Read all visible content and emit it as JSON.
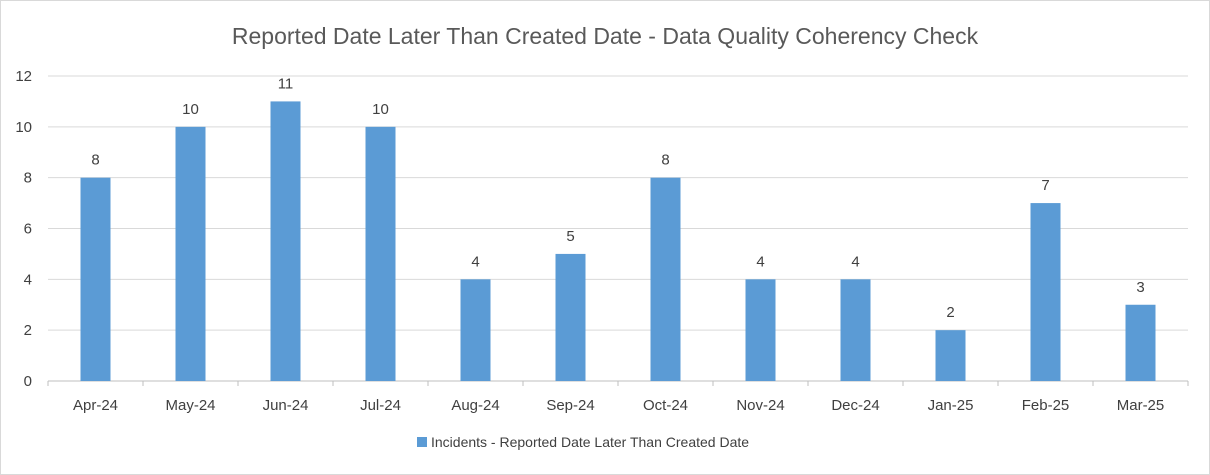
{
  "chart_data": {
    "type": "bar",
    "title": "Reported Date Later Than Created Date - Data Quality Coherency Check",
    "xlabel": "",
    "ylabel": "",
    "ylim": [
      0,
      12
    ],
    "yticks": [
      0,
      2,
      4,
      6,
      8,
      10,
      12
    ],
    "grid": true,
    "legend_position": "bottom",
    "categories": [
      "Apr-24",
      "May-24",
      "Jun-24",
      "Jul-24",
      "Aug-24",
      "Sep-24",
      "Oct-24",
      "Nov-24",
      "Dec-24",
      "Jan-25",
      "Feb-25",
      "Mar-25"
    ],
    "series": [
      {
        "name": "Incidents - Reported Date Later Than Created Date",
        "values": [
          8,
          10,
          11,
          10,
          4,
          5,
          8,
          4,
          4,
          2,
          7,
          3
        ],
        "color": "#5b9bd5"
      }
    ]
  }
}
